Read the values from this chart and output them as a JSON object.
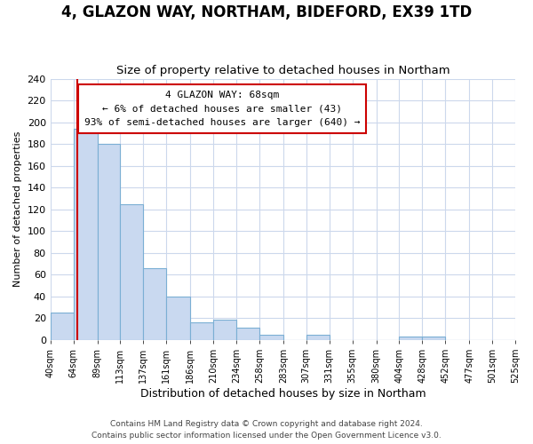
{
  "title": "4, GLAZON WAY, NORTHAM, BIDEFORD, EX39 1TD",
  "subtitle": "Size of property relative to detached houses in Northam",
  "xlabel": "Distribution of detached houses by size in Northam",
  "ylabel": "Number of detached properties",
  "bin_edges": [
    40,
    64,
    89,
    113,
    137,
    161,
    186,
    210,
    234,
    258,
    283,
    307,
    331,
    355,
    380,
    404,
    428,
    452,
    477,
    501,
    525
  ],
  "bin_labels": [
    "40sqm",
    "64sqm",
    "89sqm",
    "113sqm",
    "137sqm",
    "161sqm",
    "186sqm",
    "210sqm",
    "234sqm",
    "258sqm",
    "283sqm",
    "307sqm",
    "331sqm",
    "355sqm",
    "380sqm",
    "404sqm",
    "428sqm",
    "452sqm",
    "477sqm",
    "501sqm",
    "525sqm"
  ],
  "counts": [
    25,
    194,
    180,
    125,
    66,
    40,
    16,
    19,
    11,
    5,
    0,
    5,
    0,
    0,
    0,
    3,
    3,
    0,
    0,
    0
  ],
  "bar_color": "#c9d9f0",
  "bar_edge_color": "#7bafd4",
  "property_line_x": 68,
  "property_line_color": "#cc0000",
  "ylim": [
    0,
    240
  ],
  "yticks": [
    0,
    20,
    40,
    60,
    80,
    100,
    120,
    140,
    160,
    180,
    200,
    220,
    240
  ],
  "annotation_title": "4 GLAZON WAY: 68sqm",
  "annotation_line1": "← 6% of detached houses are smaller (43)",
  "annotation_line2": "93% of semi-detached houses are larger (640) →",
  "annotation_box_color": "#ffffff",
  "annotation_box_edge_color": "#cc0000",
  "footer_line1": "Contains HM Land Registry data © Crown copyright and database right 2024.",
  "footer_line2": "Contains public sector information licensed under the Open Government Licence v3.0.",
  "background_color": "#ffffff",
  "grid_color": "#ccd8ec",
  "title_fontsize": 12,
  "subtitle_fontsize": 9.5
}
